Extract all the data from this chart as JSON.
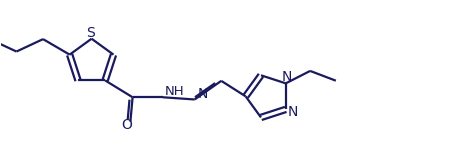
{
  "bg_color": "#ffffff",
  "line_color": "#1a1a5e",
  "line_width": 1.6,
  "figsize": [
    4.58,
    1.59
  ],
  "dpi": 100,
  "xlim": [
    -0.5,
    9.8
  ],
  "ylim": [
    -1.5,
    1.5
  ]
}
